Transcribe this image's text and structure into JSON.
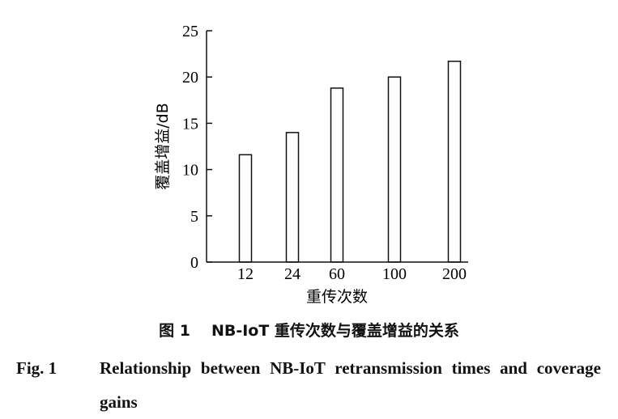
{
  "chart_data": {
    "type": "bar",
    "categories": [
      "12",
      "24",
      "60",
      "100",
      "200"
    ],
    "values": [
      11.6,
      14.0,
      18.8,
      20.0,
      21.7
    ],
    "xlabel": "重传次数",
    "ylabel": "覆盖增益/dB",
    "ylim": [
      0,
      25
    ],
    "yticks": [
      0,
      5,
      10,
      15,
      20,
      25
    ],
    "grid": false,
    "legend": "none",
    "bar_fill": "#ffffff",
    "bar_stroke": "#111111"
  },
  "caption": {
    "cn_number": "图 1",
    "cn_text": "NB-IoT 重传次数与覆盖增益的关系",
    "en_number": "Fig. 1",
    "en_text": "Relationship between NB-IoT retransmission times and coverage gains"
  }
}
